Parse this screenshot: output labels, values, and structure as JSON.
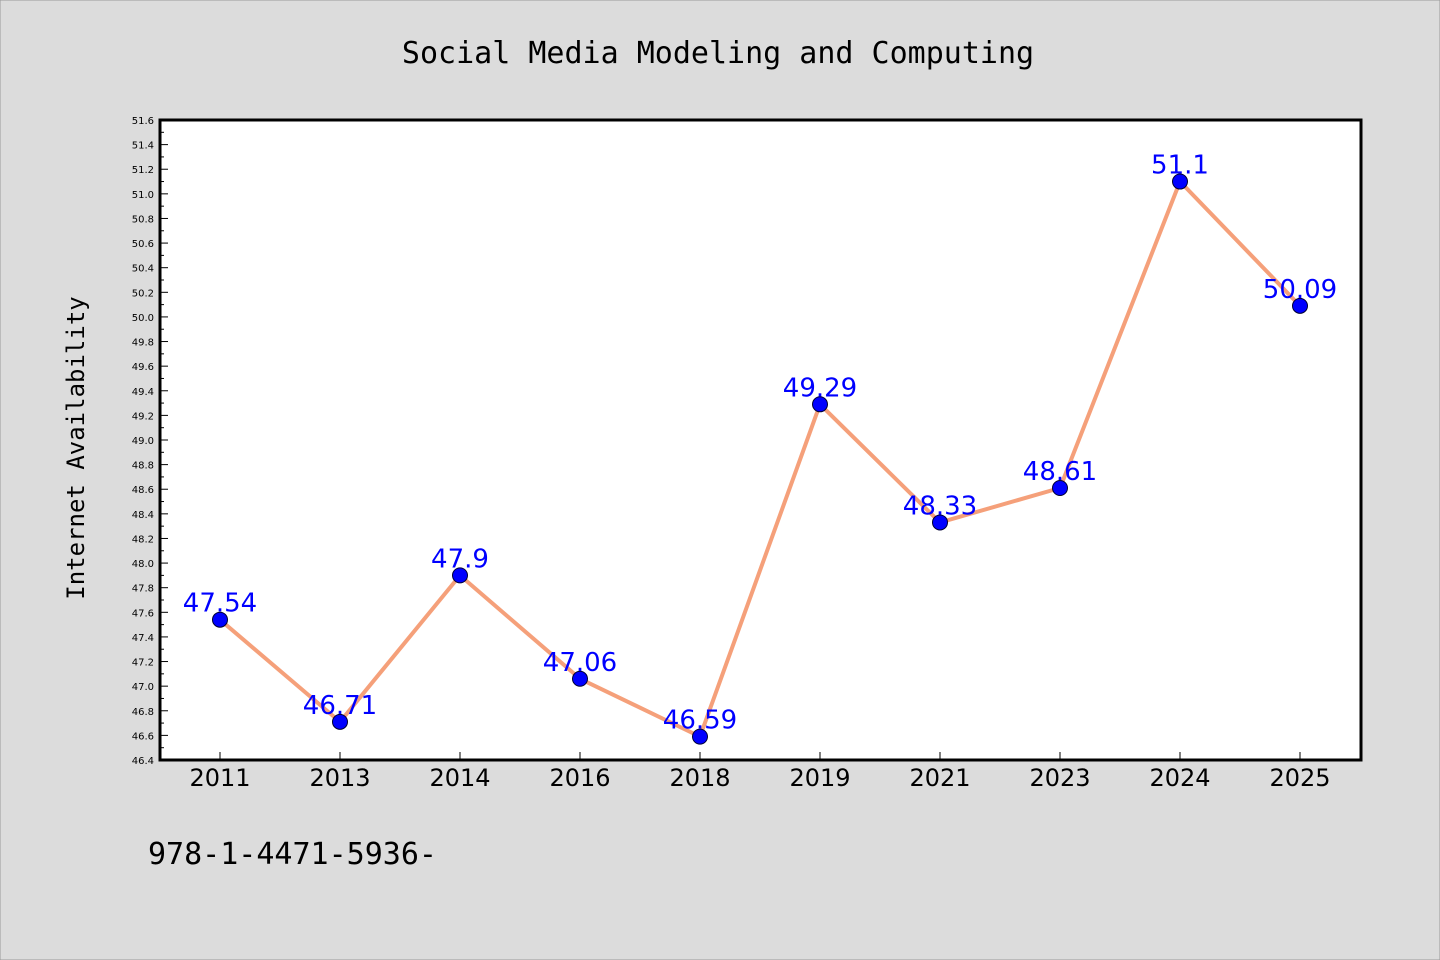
{
  "chart_data": {
    "type": "line",
    "title": "Social Media Modeling and Computing",
    "xlabel": "",
    "ylabel": "Internet Availability",
    "categories": [
      "2011",
      "2013",
      "2014",
      "2016",
      "2018",
      "2019",
      "2021",
      "2023",
      "2024",
      "2025"
    ],
    "series": [
      {
        "values": [
          47.54,
          46.71,
          47.9,
          47.06,
          46.59,
          49.29,
          48.33,
          48.61,
          51.1,
          50.09
        ],
        "line_color": "#f5a07a",
        "marker_color": "#0000ff"
      }
    ],
    "data_labels": [
      "47.54",
      "46.71",
      "47.9",
      "47.06",
      "46.59",
      "49.29",
      "48.33",
      "48.61",
      "51.1",
      "50.09"
    ],
    "ylim": [
      46.4,
      51.6
    ],
    "y_ticks": [
      "46.4",
      "46.6",
      "46.8",
      "47.0",
      "47.2",
      "47.4",
      "47.6",
      "47.8",
      "48.0",
      "48.2",
      "48.4",
      "48.6",
      "48.8",
      "49.0",
      "49.2",
      "49.4",
      "49.6",
      "49.8",
      "50.0",
      "50.2",
      "50.4",
      "50.6",
      "50.8",
      "51.0",
      "51.2",
      "51.4",
      "51.6"
    ],
    "grid": false,
    "legend": "none"
  },
  "footer_text": "978-1-4471-5936-",
  "colors": {
    "background": "#dcdcdc",
    "plot_background": "#ffffff",
    "line": "#f5a07a",
    "marker": "#0000ff",
    "data_label": "#0000ff"
  }
}
